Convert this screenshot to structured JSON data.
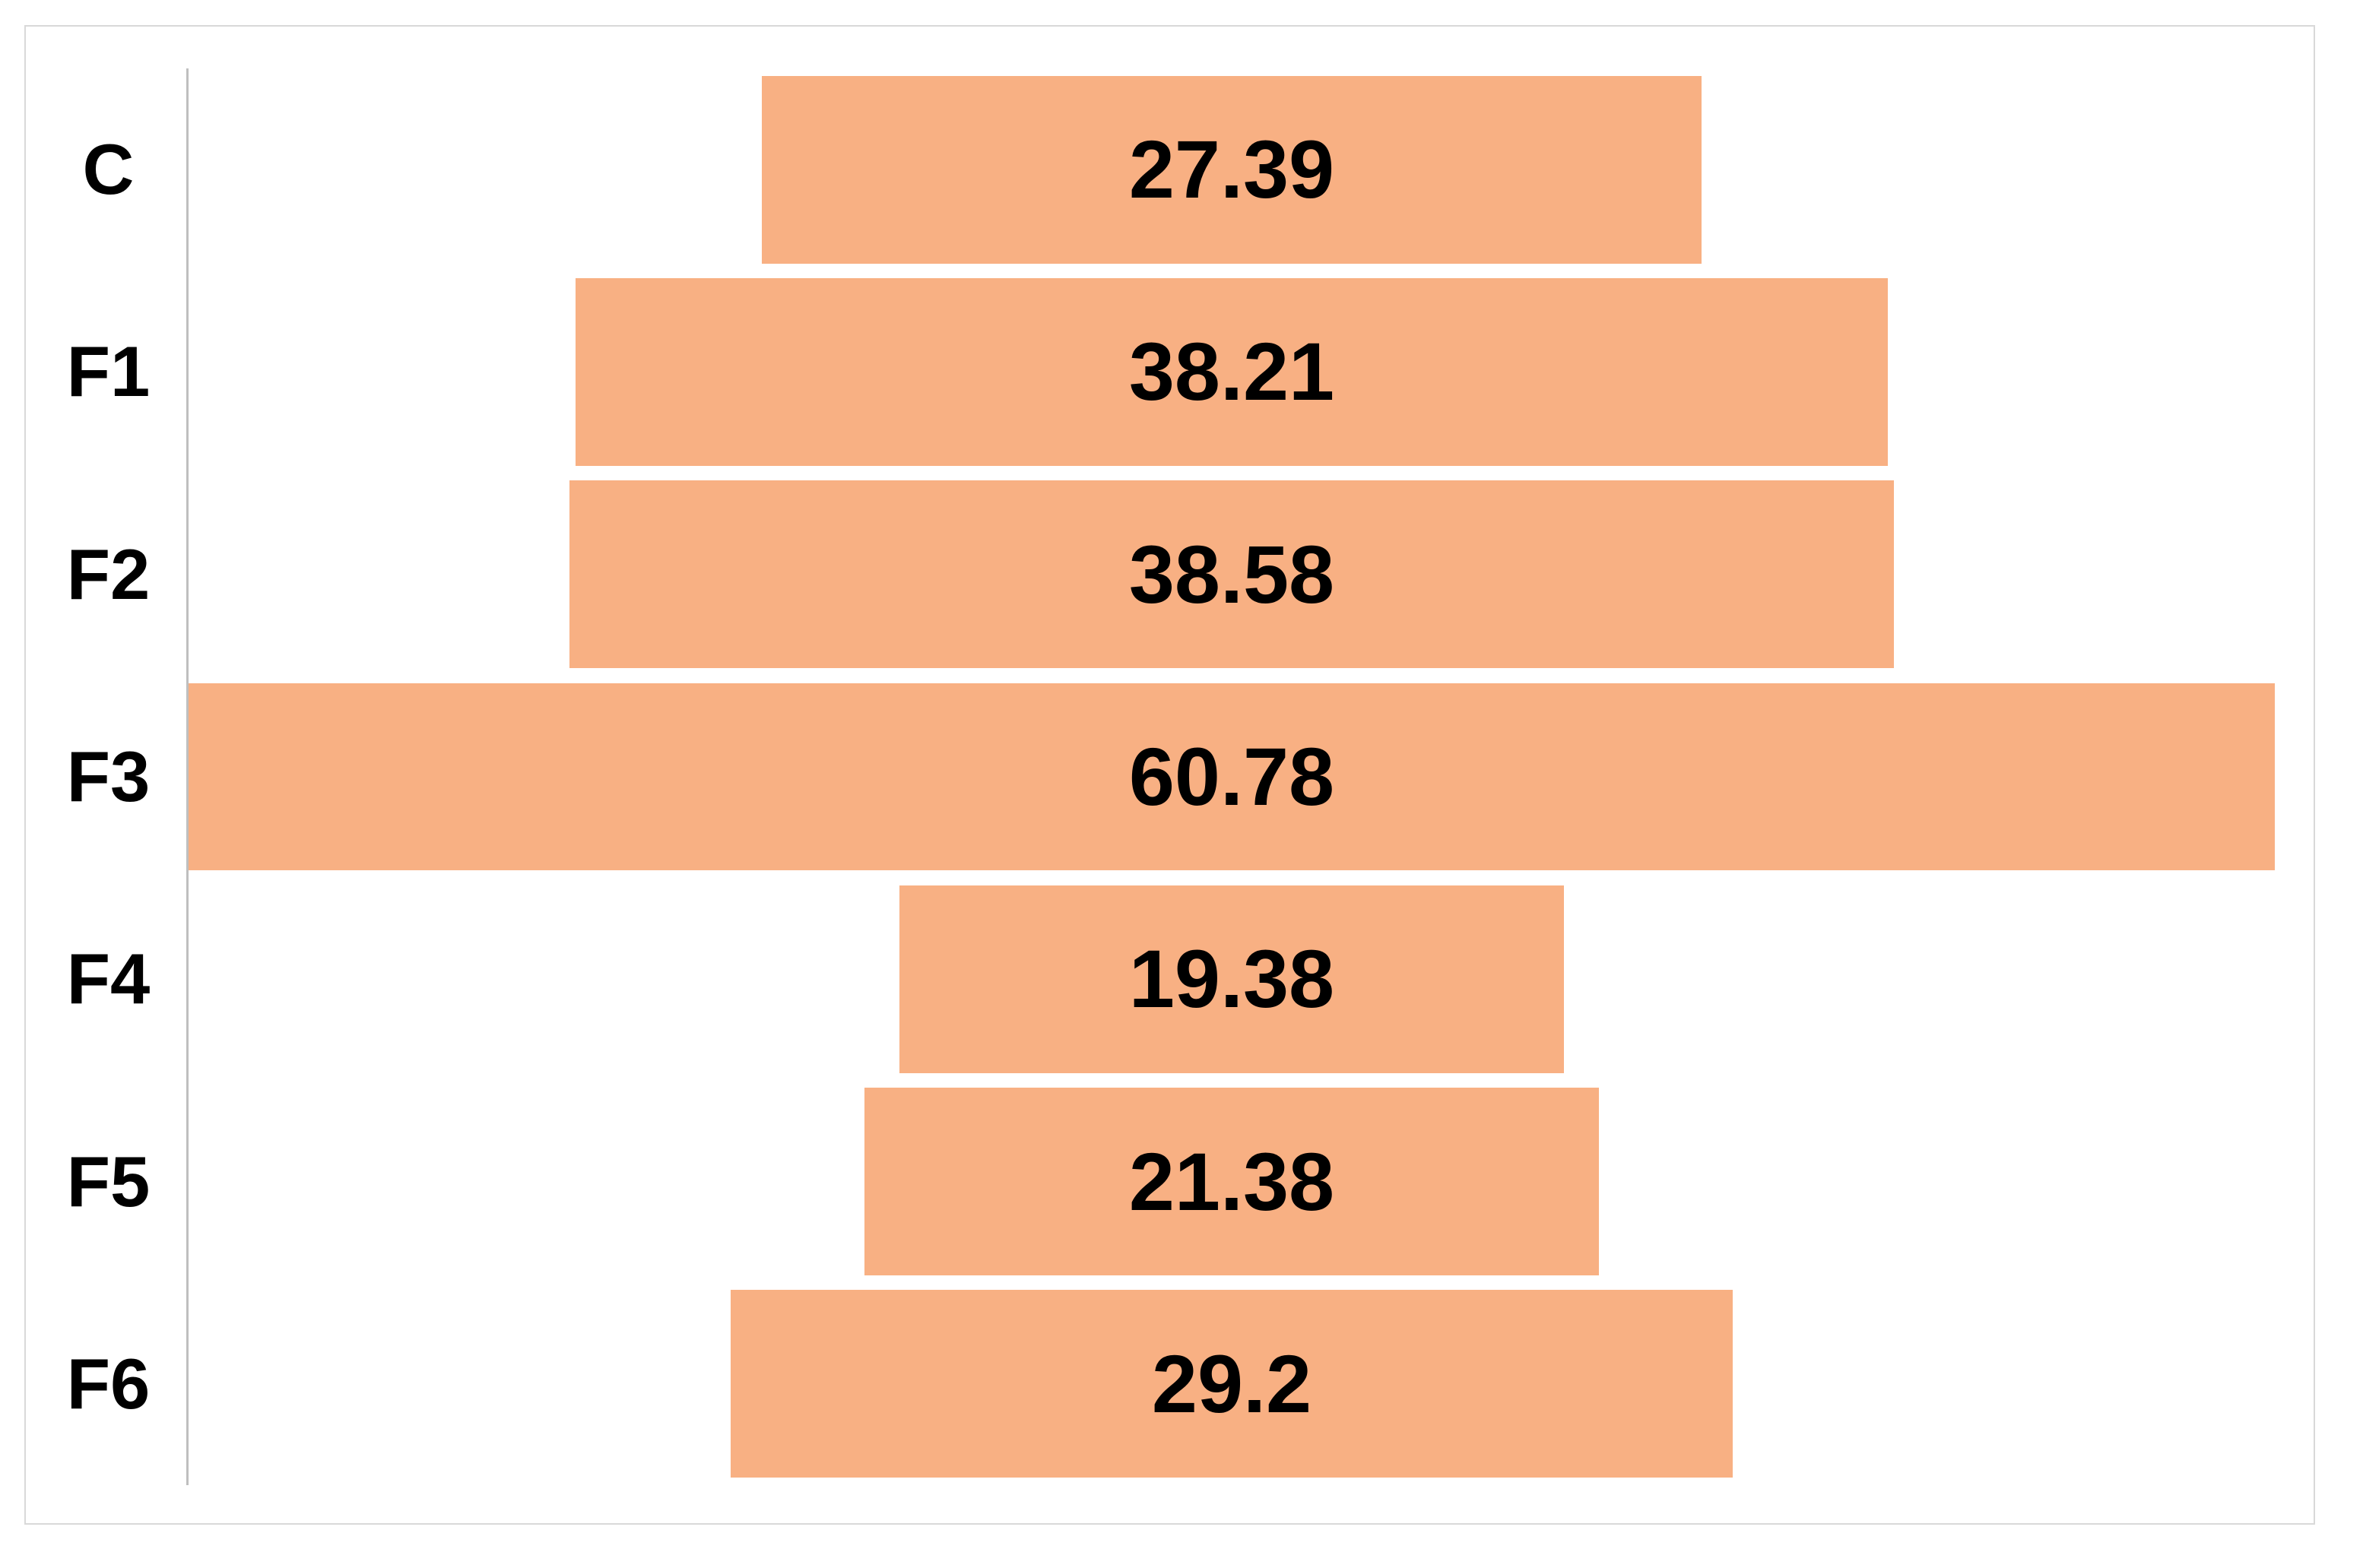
{
  "chart_data": {
    "type": "bar",
    "variant": "funnel-centered-horizontal-bars",
    "title": "",
    "xlabel": "",
    "ylabel": "",
    "categories": [
      "C",
      "F1",
      "F2",
      "F3",
      "F4",
      "F5",
      "F6"
    ],
    "values": [
      27.39,
      38.21,
      38.58,
      60.78,
      19.38,
      21.38,
      29.2
    ],
    "value_labels": [
      "27.39",
      "38.21",
      "38.58",
      "60.78",
      "19.38",
      "21.38",
      "29.2"
    ],
    "max_value": 60.78,
    "legend": "none",
    "grid": "off",
    "axis_line": "left-vertical",
    "colors": {
      "bar_fill": "#F8B083",
      "label_text": "#000000",
      "axis_line": "#BFBFBF",
      "chart_border": "#D9D9D9",
      "background": "#FFFFFF"
    }
  }
}
